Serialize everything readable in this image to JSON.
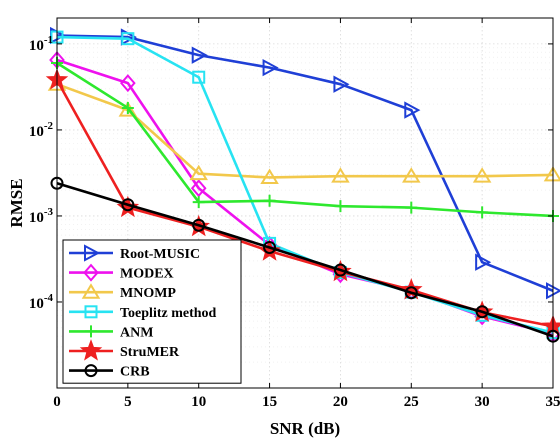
{
  "chart_data": {
    "type": "line",
    "xlabel": "SNR (dB)",
    "ylabel": "RMSE",
    "x": [
      0,
      5,
      10,
      15,
      20,
      25,
      30,
      35
    ],
    "xlim": [
      0,
      35
    ],
    "ylim": [
      1e-05,
      0.2
    ],
    "yscale": "log",
    "grid": true,
    "legend_position": "bottom-left",
    "xticks": [
      "0",
      "5",
      "10",
      "15",
      "20",
      "25",
      "30",
      "35"
    ],
    "yticks": [
      {
        "value": 0.0001,
        "base": "10",
        "exp": "-4"
      },
      {
        "value": 0.001,
        "base": "10",
        "exp": "-3"
      },
      {
        "value": 0.01,
        "base": "10",
        "exp": "-2"
      },
      {
        "value": 0.1,
        "base": "10",
        "exp": "-1"
      }
    ],
    "series": [
      {
        "name": "Root-MUSIC",
        "color": "#1f3fd6",
        "marker": "triangle-right",
        "values": [
          0.125,
          0.12,
          0.074,
          0.053,
          0.034,
          0.017,
          0.00029,
          0.000135
        ]
      },
      {
        "name": "MODEX",
        "color": "#ee11ee",
        "marker": "diamond",
        "values": [
          0.065,
          0.035,
          0.0021,
          0.00046,
          0.00021,
          0.000135,
          6.8e-05,
          4.3e-05
        ]
      },
      {
        "name": "MNOMP",
        "color": "#f2c84b",
        "marker": "triangle-up",
        "values": [
          0.034,
          0.017,
          0.0031,
          0.0028,
          0.0029,
          0.0029,
          0.0029,
          0.003
        ]
      },
      {
        "name": "Toeplitz method",
        "color": "#27e3f2",
        "marker": "square",
        "values": [
          0.12,
          0.115,
          0.041,
          0.00048,
          0.00022,
          0.00013,
          7e-05,
          4.4e-05
        ]
      },
      {
        "name": "ANM",
        "color": "#2ee82e",
        "marker": "plus",
        "values": [
          0.06,
          0.018,
          0.00145,
          0.0015,
          0.0013,
          0.00125,
          0.0011,
          0.001
        ]
      },
      {
        "name": "StruMER",
        "color": "#ee2020",
        "marker": "star",
        "values": [
          0.038,
          0.00125,
          0.00075,
          0.00039,
          0.000225,
          0.000138,
          7.6e-05,
          5.2e-05
        ]
      },
      {
        "name": "CRB",
        "color": "#000000",
        "marker": "circle",
        "values": [
          0.0024,
          0.00135,
          0.00078,
          0.00043,
          0.000235,
          0.000128,
          7.7e-05,
          4e-05
        ]
      }
    ]
  }
}
